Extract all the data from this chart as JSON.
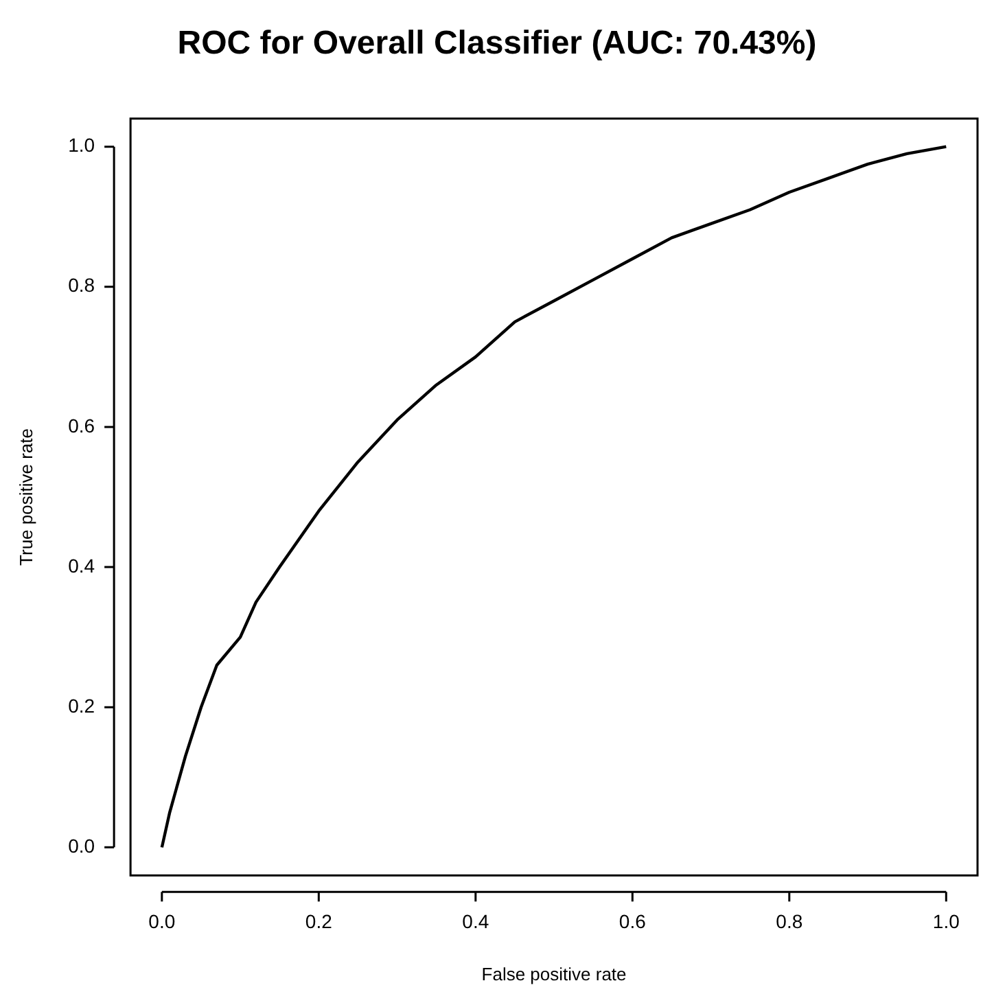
{
  "chart_data": {
    "type": "line",
    "title": "ROC for Overall Classifier (AUC: 70.43%)",
    "xlabel": "False positive rate",
    "ylabel": "True positive rate",
    "x": [
      0,
      0.01,
      0.03,
      0.05,
      0.07,
      0.1,
      0.12,
      0.15,
      0.2,
      0.25,
      0.3,
      0.35,
      0.4,
      0.45,
      0.5,
      0.55,
      0.6,
      0.65,
      0.7,
      0.75,
      0.8,
      0.85,
      0.9,
      0.95,
      1.0
    ],
    "series": [
      {
        "color": "#000000",
        "values": [
          0,
          0.05,
          0.13,
          0.2,
          0.26,
          0.3,
          0.35,
          0.4,
          0.48,
          0.55,
          0.61,
          0.66,
          0.7,
          0.75,
          0.78,
          0.81,
          0.84,
          0.87,
          0.89,
          0.91,
          0.935,
          0.955,
          0.975,
          0.99,
          1.0
        ]
      }
    ],
    "xlim": [
      -0.04,
      1.04
    ],
    "ylim": [
      -0.04,
      1.04
    ],
    "xticks": [
      {
        "value": 0,
        "label": "0.0"
      },
      {
        "value": 0.2,
        "label": "0.2"
      },
      {
        "value": 0.4,
        "label": "0.4"
      },
      {
        "value": 0.6,
        "label": "0.6"
      },
      {
        "value": 0.8,
        "label": "0.8"
      },
      {
        "value": 1,
        "label": "1.0"
      }
    ],
    "yticks": [
      {
        "value": 0,
        "label": "0.0"
      },
      {
        "value": 0.2,
        "label": "0.2"
      },
      {
        "value": 0.4,
        "label": "0.4"
      },
      {
        "value": 0.6,
        "label": "0.6"
      },
      {
        "value": 0.8,
        "label": "0.8"
      },
      {
        "value": 1,
        "label": "1.0"
      }
    ],
    "grid": false,
    "legend": false,
    "marker": "none",
    "line_style": "solid"
  }
}
